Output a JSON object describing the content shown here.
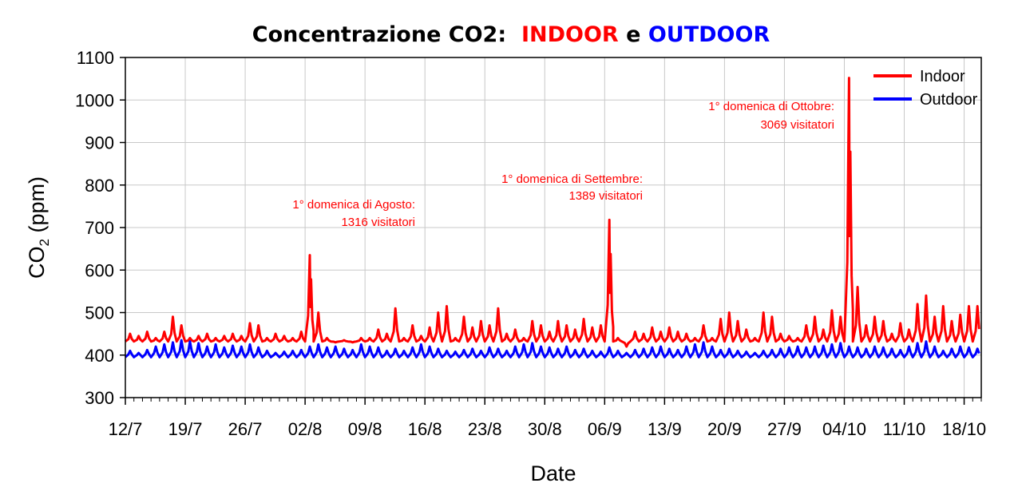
{
  "chart_data": {
    "type": "line",
    "title": {
      "prefix": "Concentrazione CO2:  ",
      "indoor_word": "INDOOR",
      "middle": " e ",
      "outdoor_word": "OUTDOOR"
    },
    "xlabel": "Date",
    "ylabel": "CO",
    "ylabel_sub": "2",
    "ylabel_unit": " (ppm)",
    "ylim": [
      300,
      1100
    ],
    "yticks": [
      300,
      400,
      500,
      600,
      700,
      800,
      900,
      1000,
      1100
    ],
    "xlim_days": [
      0,
      100
    ],
    "xtick_labels": [
      "12/7",
      "19/7",
      "26/7",
      "02/8",
      "09/8",
      "16/8",
      "23/8",
      "30/8",
      "06/9",
      "13/9",
      "20/9",
      "27/9",
      "04/10",
      "11/10",
      "18/10"
    ],
    "xtick_step_days": 7,
    "grid": true,
    "legend": {
      "placement": "top-right",
      "entries": [
        "Indoor",
        "Outdoor"
      ]
    },
    "colors": {
      "indoor": "#ff0000",
      "outdoor": "#0000ff",
      "grid": "#c8c8c8"
    },
    "series": [
      {
        "name": "Indoor",
        "base": 432,
        "daily_peaks": [
          450,
          445,
          455,
          440,
          455,
          490,
          470,
          440,
          445,
          450,
          440,
          445,
          450,
          445,
          475,
          470,
          440,
          450,
          445,
          440,
          455,
          635,
          500,
          440,
          430,
          435,
          430,
          440,
          440,
          460,
          450,
          510,
          440,
          470,
          445,
          465,
          500,
          515,
          440,
          490,
          465,
          480,
          470,
          510,
          450,
          460,
          440,
          480,
          470,
          455,
          480,
          470,
          460,
          485,
          465,
          470,
          718,
          440,
          420,
          455,
          450,
          465,
          455,
          465,
          455,
          450,
          440,
          470,
          440,
          485,
          500,
          480,
          460,
          440,
          500,
          490,
          450,
          445,
          440,
          470,
          490,
          460,
          505,
          490,
          1052,
          560,
          470,
          490,
          480,
          450,
          475,
          460,
          520,
          540,
          490,
          515,
          480,
          495,
          515,
          515
        ]
      },
      {
        "name": "Outdoor",
        "base": 398,
        "daily_peaks": [
          410,
          405,
          412,
          420,
          425,
          430,
          435,
          432,
          428,
          420,
          425,
          418,
          422,
          420,
          425,
          418,
          410,
          405,
          408,
          410,
          412,
          420,
          425,
          418,
          420,
          415,
          412,
          425,
          420,
          418,
          410,
          415,
          410,
          418,
          425,
          420,
          415,
          410,
          408,
          412,
          415,
          410,
          418,
          415,
          410,
          420,
          425,
          428,
          420,
          418,
          415,
          420,
          412,
          415,
          410,
          408,
          418,
          410,
          405,
          412,
          415,
          418,
          420,
          415,
          412,
          420,
          425,
          430,
          420,
          412,
          415,
          410,
          408,
          405,
          410,
          412,
          415,
          418,
          420,
          418,
          420,
          422,
          425,
          428,
          420,
          418,
          415,
          420,
          418,
          415,
          412,
          420,
          428,
          432,
          420,
          410,
          415,
          420,
          418,
          415
        ]
      }
    ],
    "annotations": [
      {
        "line1": "1° domenica di Agosto:",
        "line2": "1316 visitatori"
      },
      {
        "line1": "1° domenica di Settembre:",
        "line2": "1389 visitatori"
      },
      {
        "line1": "1° domenica di Ottobre:",
        "line2": "3069 visitatori"
      }
    ]
  }
}
